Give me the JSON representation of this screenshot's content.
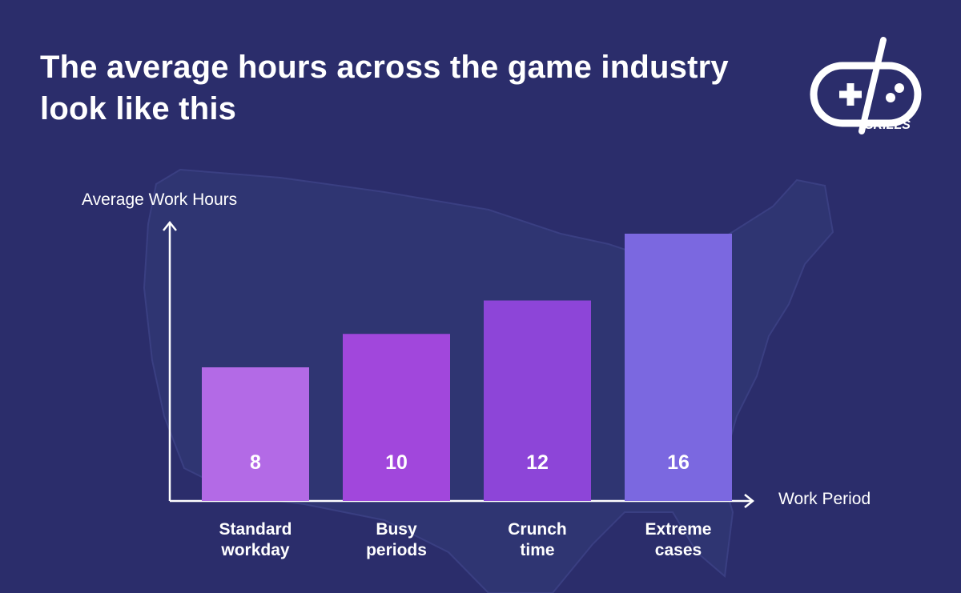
{
  "header": {
    "title": "The average hours across the game industry look like this",
    "logo_text": "SKILLS",
    "logo_icon": "gd-skills-logo-icon"
  },
  "colors": {
    "background": "#2b2d6b",
    "map": "#2f3572",
    "axis": "#ffffff",
    "bar_1": "#b36ae6",
    "bar_2": "#a147dc",
    "bar_3": "#8d45d8",
    "bar_4": "#7b68e0"
  },
  "chart_data": {
    "type": "bar",
    "title": "The average hours across the game industry look like this",
    "xlabel": "Work Period",
    "ylabel": "Average Work Hours",
    "categories": [
      [
        "Standard",
        "workday"
      ],
      [
        "Busy",
        "periods"
      ],
      [
        "Crunch",
        "time"
      ],
      [
        "Extreme",
        "cases"
      ]
    ],
    "values": [
      8,
      10,
      12,
      16
    ],
    "data_labels": [
      "8",
      "10",
      "12",
      "16"
    ],
    "ylim": [
      0,
      16
    ],
    "grid": false,
    "legend": "none"
  }
}
